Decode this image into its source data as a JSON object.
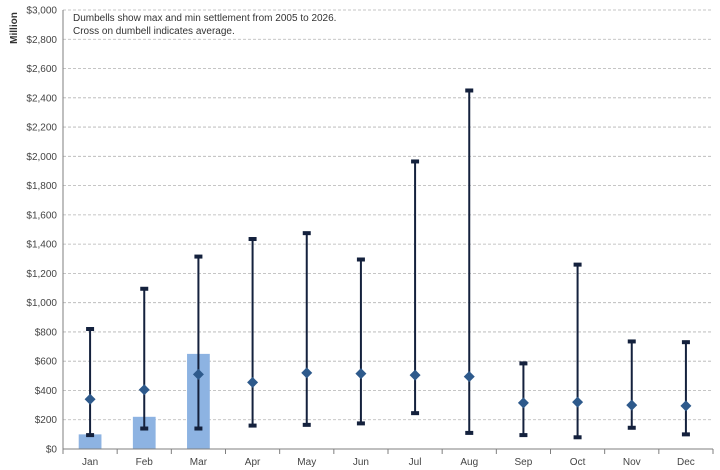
{
  "chart_data": {
    "type": "bar",
    "ylabel": "Million",
    "ylim": [
      0,
      3000
    ],
    "ytick_step": 200,
    "ytick_prefix": "$",
    "grid": true,
    "annotation": [
      "Dumbells show max and min settlement from 2005 to 2026.",
      "Cross on dumbell indicates average."
    ],
    "categories": [
      "Jan",
      "Feb",
      "Mar",
      "Apr",
      "May",
      "Jun",
      "Jul",
      "Aug",
      "Sep",
      "Oct",
      "Nov",
      "Dec"
    ],
    "bar_values": [
      100,
      220,
      650,
      null,
      null,
      null,
      null,
      null,
      null,
      null,
      null,
      null
    ],
    "max": [
      820,
      1095,
      1315,
      1435,
      1475,
      1295,
      1965,
      2450,
      585,
      1260,
      735,
      730
    ],
    "min": [
      95,
      140,
      140,
      160,
      165,
      175,
      245,
      110,
      95,
      80,
      145,
      100
    ],
    "average": [
      340,
      405,
      510,
      455,
      520,
      515,
      505,
      495,
      315,
      320,
      300,
      295
    ],
    "colors": {
      "bar": "#8db3e2",
      "dumbbell": "#14213d",
      "marker": "#2e5a8c",
      "grid": "#b3b3b3",
      "axis": "#7f7f7f"
    }
  }
}
